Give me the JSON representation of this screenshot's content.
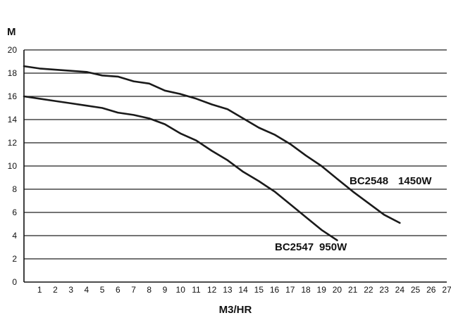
{
  "chart_data": {
    "type": "line",
    "title": "",
    "xlabel": "M3/HR",
    "ylabel": "M",
    "xlim": [
      0,
      27
    ],
    "ylim": [
      0,
      20
    ],
    "xticks": [
      1,
      2,
      3,
      4,
      5,
      6,
      7,
      8,
      9,
      10,
      11,
      12,
      13,
      14,
      15,
      16,
      17,
      18,
      19,
      20,
      21,
      22,
      23,
      24,
      25,
      26,
      27
    ],
    "yticks": [
      0,
      2,
      4,
      6,
      8,
      10,
      12,
      14,
      16,
      18,
      20
    ],
    "grid": "horizontal",
    "series": [
      {
        "name": "BC2548  1450W",
        "model": "BC2548",
        "power": "1450W",
        "x": [
          0,
          1,
          2,
          3,
          4,
          5,
          6,
          7,
          8,
          9,
          10,
          11,
          12,
          13,
          14,
          15,
          16,
          17,
          18,
          19,
          20,
          21,
          22,
          23,
          24
        ],
        "y": [
          18.6,
          18.4,
          18.3,
          18.2,
          18.1,
          17.8,
          17.7,
          17.3,
          17.1,
          16.5,
          16.2,
          15.8,
          15.3,
          14.9,
          14.1,
          13.3,
          12.7,
          11.9,
          10.9,
          10.0,
          8.9,
          7.8,
          6.8,
          5.8,
          5.1
        ]
      },
      {
        "name": "BC2547  950W",
        "model": "BC2547",
        "power": "950W",
        "x": [
          0,
          1,
          2,
          3,
          4,
          5,
          6,
          7,
          8,
          9,
          10,
          11,
          12,
          13,
          14,
          15,
          16,
          17,
          18,
          19,
          20
        ],
        "y": [
          16.0,
          15.8,
          15.6,
          15.4,
          15.2,
          15.0,
          14.6,
          14.4,
          14.1,
          13.6,
          12.8,
          12.2,
          11.3,
          10.5,
          9.5,
          8.7,
          7.8,
          6.7,
          5.6,
          4.5,
          3.6
        ]
      }
    ]
  }
}
